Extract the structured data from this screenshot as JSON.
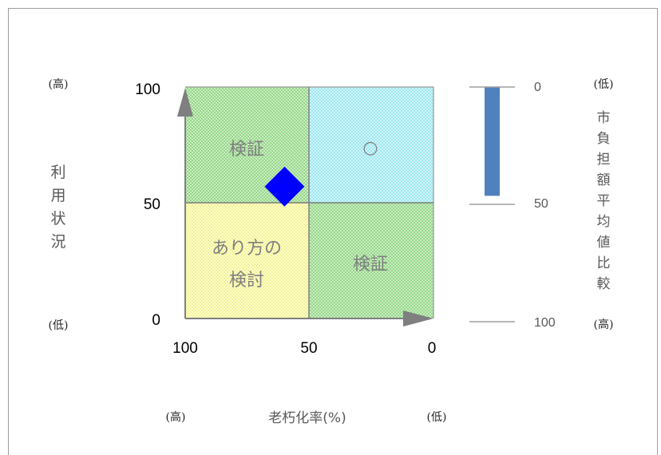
{
  "chart_data": {
    "type": "scatter",
    "x_axis": {
      "label": "老朽化率(%)",
      "ticks": [
        "100",
        "50",
        "0"
      ],
      "range": [
        100,
        0
      ],
      "high_label": "(高)",
      "low_label": "(低)"
    },
    "y_axis": {
      "label_chars": [
        "利",
        "用",
        "状",
        "況"
      ],
      "ticks": [
        "100",
        "50",
        "0"
      ],
      "range": [
        0,
        100
      ],
      "high_label": "(高)",
      "low_label": "(低)"
    },
    "quadrants": {
      "top_left": "検証",
      "top_right": "○",
      "bottom_left_line1": "あり方の",
      "bottom_left_line2": "検討",
      "bottom_right": "検証"
    },
    "point": {
      "x": 60,
      "y": 57,
      "marker": "diamond",
      "color": "#0000FF"
    },
    "burden_axis": {
      "label_chars": [
        "市",
        "負",
        "担",
        "額",
        "平",
        "均",
        "値",
        "比",
        "較"
      ],
      "ticks": [
        "0",
        "50",
        "100"
      ],
      "range": [
        0,
        100
      ],
      "top_label": "(低)",
      "bottom_label": "(高)"
    },
    "burden_bar": {
      "start": 0,
      "end": 45,
      "color": "#4F81BD"
    }
  },
  "colors": {
    "green": "#C6EFB3",
    "cyan": "#CCF5FA",
    "yellow": "#FFFFB5",
    "grid": "#7f7f7f"
  }
}
